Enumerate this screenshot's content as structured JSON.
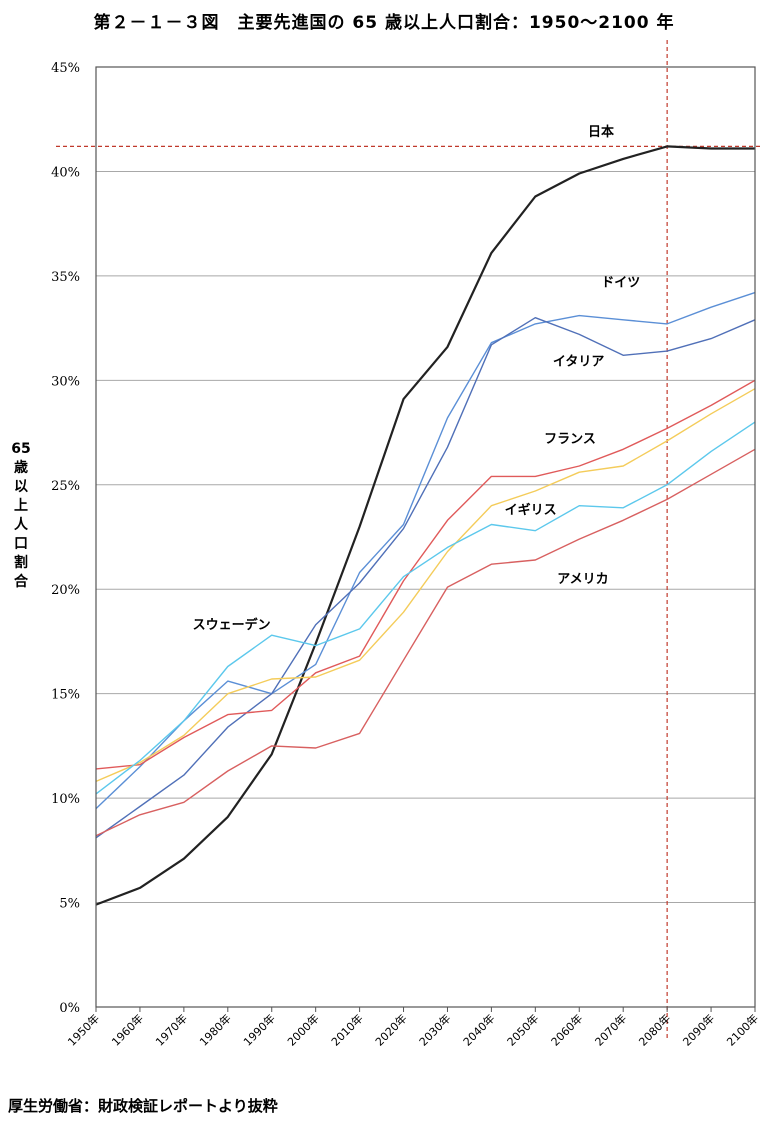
{
  "chart_data": {
    "type": "line",
    "title": "第２－１－３図　主要先進国の 65 歳以上人口割合：1950〜2100 年",
    "ylabel": "65歳以上人口割合",
    "xlabel": "",
    "ylim": [
      0,
      45
    ],
    "y_ticks": [
      {
        "value": 0,
        "label": "0%"
      },
      {
        "value": 5,
        "label": "5%"
      },
      {
        "value": 10,
        "label": "10%"
      },
      {
        "value": 15,
        "label": "15%"
      },
      {
        "value": 20,
        "label": "20%"
      },
      {
        "value": 25,
        "label": "25%"
      },
      {
        "value": 30,
        "label": "30%"
      },
      {
        "value": 35,
        "label": "35%"
      },
      {
        "value": 40,
        "label": "40%"
      },
      {
        "value": 45,
        "label": "45%"
      }
    ],
    "categories": [
      "1950年",
      "1960年",
      "1970年",
      "1980年",
      "1990年",
      "2000年",
      "2010年",
      "2020年",
      "2030年",
      "2040年",
      "2050年",
      "2060年",
      "2070年",
      "2080年",
      "2090年",
      "2100年"
    ],
    "grid": true,
    "reference_lines": {
      "horizontal_value": 41.2,
      "vertical_category": "2080年",
      "color": "#c0392b"
    },
    "series": [
      {
        "name": "日本",
        "color": "#222222",
        "width": 2.2,
        "values": [
          4.9,
          5.7,
          7.1,
          9.1,
          12.1,
          17.4,
          23.0,
          29.1,
          31.6,
          36.1,
          38.8,
          39.9,
          40.6,
          41.2,
          41.1,
          41.1
        ]
      },
      {
        "name": "ドイツ",
        "color": "#5b8fd6",
        "width": 1.4,
        "values": [
          9.5,
          11.5,
          13.7,
          15.6,
          15.0,
          16.4,
          20.8,
          23.1,
          28.2,
          31.8,
          32.7,
          33.1,
          32.9,
          32.7,
          33.5,
          34.2
        ]
      },
      {
        "name": "イタリア",
        "color": "#5070b8",
        "width": 1.4,
        "values": [
          8.1,
          9.6,
          11.1,
          13.4,
          15.0,
          18.3,
          20.3,
          22.9,
          26.8,
          31.7,
          33.0,
          32.2,
          31.2,
          31.4,
          32.0,
          32.9
        ]
      },
      {
        "name": "フランス",
        "color": "#e05a5a",
        "width": 1.4,
        "values": [
          11.4,
          11.6,
          12.9,
          14.0,
          14.2,
          16.0,
          16.8,
          20.4,
          23.3,
          25.4,
          25.4,
          25.9,
          26.7,
          27.7,
          28.8,
          30.0
        ]
      },
      {
        "name": "イギリス",
        "color": "#f4cc5a",
        "width": 1.4,
        "values": [
          10.8,
          11.7,
          13.0,
          15.0,
          15.7,
          15.8,
          16.6,
          18.9,
          21.8,
          24.0,
          24.7,
          25.6,
          25.9,
          27.1,
          28.4,
          29.6
        ]
      },
      {
        "name": "スウェーデン",
        "color": "#5cc8ec",
        "width": 1.4,
        "values": [
          10.2,
          11.8,
          13.7,
          16.3,
          17.8,
          17.3,
          18.1,
          20.6,
          22.0,
          23.1,
          22.8,
          24.0,
          23.9,
          25.0,
          26.6,
          28.0
        ]
      },
      {
        "name": "アメリカ",
        "color": "#d86060",
        "width": 1.4,
        "values": [
          8.2,
          9.2,
          9.8,
          11.3,
          12.5,
          12.4,
          13.1,
          16.6,
          20.1,
          21.2,
          21.4,
          22.4,
          23.3,
          24.3,
          25.5,
          26.7
        ]
      }
    ]
  },
  "source_note": "厚生労働省：財政検証レポートより抜粋"
}
